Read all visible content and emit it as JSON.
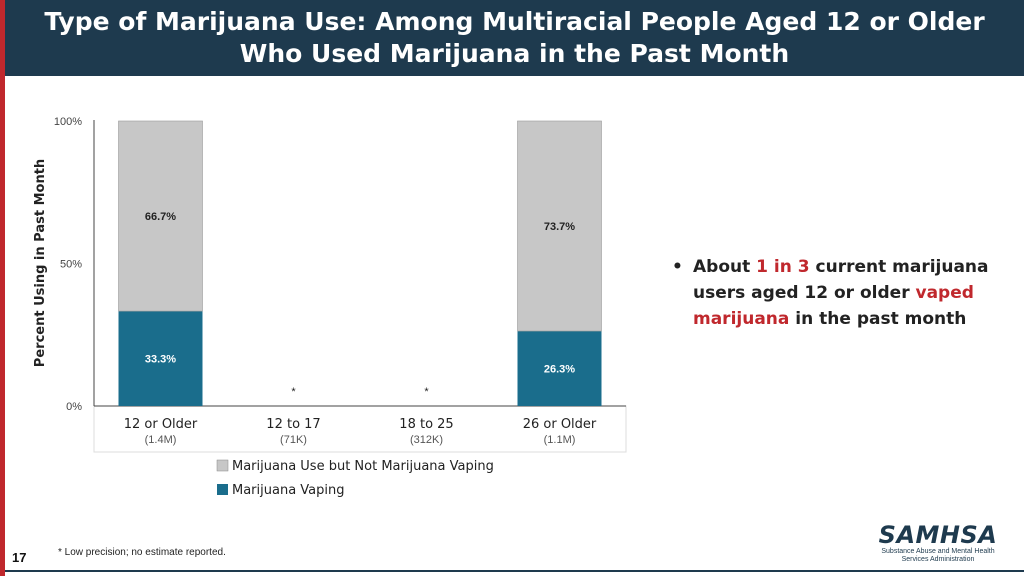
{
  "title": {
    "line1": "Type of Marijuana Use: Among Multiracial People Aged 12 or Older",
    "line2": "Who Used Marijuana in the Past Month"
  },
  "colors": {
    "vaping": "#1a6d8c",
    "not_vaping": "#c7c7c7",
    "title_bg": "#1e3a4e",
    "accent_red": "#c0282d"
  },
  "chart_data": {
    "type": "bar",
    "stacked": true,
    "ylabel": "Percent Using in Past Month",
    "ylim": [
      0,
      100
    ],
    "yticks": [
      "0%",
      "50%",
      "100%"
    ],
    "categories": [
      "12 or Older",
      "12 to 17",
      "18 to 25",
      "26 or Older"
    ],
    "category_counts": [
      "(1.4M)",
      "(71K)",
      "(312K)",
      "(1.1M)"
    ],
    "series": [
      {
        "name": "Marijuana Vaping",
        "values": [
          33.3,
          null,
          null,
          26.3
        ],
        "labels": [
          "33.3%",
          "*",
          "*",
          "26.3%"
        ]
      },
      {
        "name": "Marijuana Use but Not Marijuana Vaping",
        "values": [
          66.7,
          null,
          null,
          73.7
        ],
        "labels": [
          "66.7%",
          "",
          "",
          "73.7%"
        ]
      }
    ],
    "legend_position": "bottom",
    "grid": false
  },
  "bullet": {
    "part1": "About ",
    "highlight1": "1 in 3",
    "part2": " current marijuana users aged 12 or older ",
    "highlight2": "vaped marijuana",
    "part3": " in the past month"
  },
  "footnote": "* Low precision; no estimate reported.",
  "page_number": "17",
  "logo": {
    "name": "SAMHSA",
    "subtitle_line1": "Substance Abuse and Mental Health",
    "subtitle_line2": "Services Administration"
  }
}
